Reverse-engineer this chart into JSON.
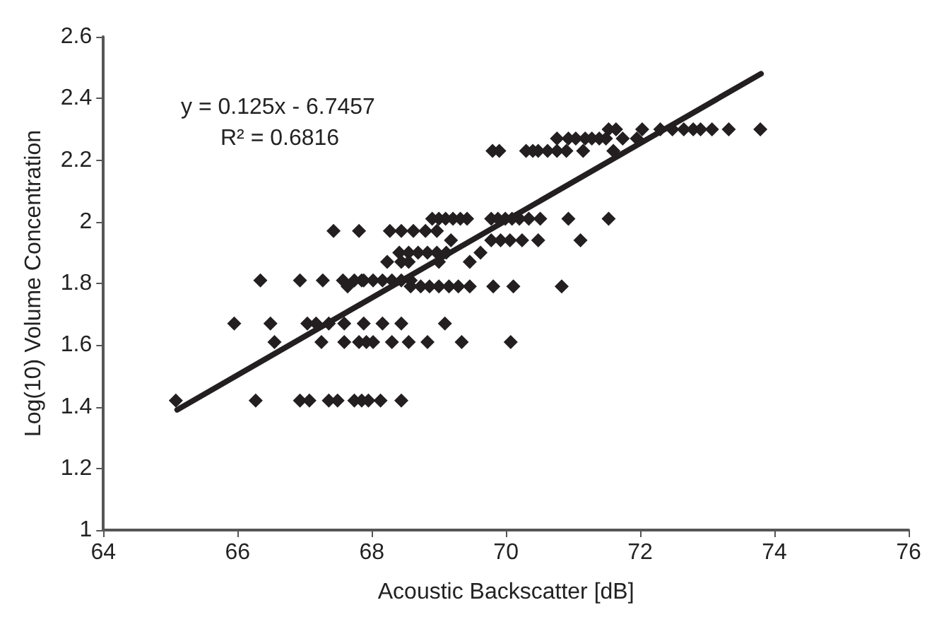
{
  "chart_data": {
    "type": "scatter",
    "xlabel": "Acoustic Backscatter [dB]",
    "ylabel": "Log(10) Volume Concentration",
    "xlim": [
      64,
      76
    ],
    "xticks": [
      64,
      66,
      68,
      70,
      72,
      74,
      76
    ],
    "ylim": [
      1,
      2.6
    ],
    "yticks": [
      1,
      1.2,
      1.4,
      1.6,
      1.8,
      2,
      2.2,
      2.4,
      2.6
    ],
    "grid": false,
    "annotations": [
      "y = 0.125x - 6.7457",
      "R² = 0.6816"
    ],
    "series": [
      {
        "color": "#231f20",
        "marker": "diamond",
        "x": [
          65.08,
          66.27,
          66.93,
          67.07,
          67.36,
          67.49,
          67.74,
          67.85,
          67.95,
          68.13,
          68.44,
          66.55,
          67.25,
          67.59,
          67.81,
          67.92,
          68.02,
          68.3,
          68.55,
          68.83,
          69.34,
          70.07,
          65.95,
          66.49,
          67.04,
          67.17,
          67.36,
          67.59,
          67.88,
          68.16,
          68.44,
          69.09,
          66.34,
          66.93,
          67.27,
          67.57,
          67.85,
          67.64,
          67.43,
          67.81,
          68.9,
          69.0,
          69.1,
          69.21,
          69.32,
          69.42,
          69.78,
          69.88,
          69.99,
          70.09,
          70.2,
          70.34,
          70.51,
          70.93,
          71.53,
          68.27,
          68.44,
          68.62,
          68.8,
          68.97,
          69.78,
          69.92,
          70.06,
          70.24,
          70.48,
          71.11,
          69.18,
          68.41,
          68.55,
          68.69,
          68.83,
          68.97,
          69.11,
          69.62,
          68.23,
          68.44,
          68.55,
          69.0,
          69.46,
          67.74,
          67.88,
          68.02,
          68.16,
          68.3,
          68.44,
          68.58,
          68.58,
          68.73,
          68.86,
          69.0,
          69.15,
          69.29,
          69.46,
          69.81,
          70.11,
          70.83,
          71.53,
          71.64,
          72.03,
          72.3,
          72.48,
          72.65,
          72.79,
          72.9,
          73.07,
          73.32,
          73.79,
          70.76,
          70.93,
          71.04,
          71.18,
          71.28,
          71.39,
          71.49,
          71.74,
          71.95,
          69.8,
          69.9,
          70.3,
          70.4,
          70.48,
          70.62,
          70.76,
          70.9,
          71.15,
          71.6
        ],
        "values": [
          1.42,
          1.42,
          1.42,
          1.42,
          1.42,
          1.42,
          1.42,
          1.42,
          1.42,
          1.42,
          1.42,
          1.61,
          1.61,
          1.61,
          1.61,
          1.61,
          1.61,
          1.61,
          1.61,
          1.61,
          1.61,
          1.61,
          1.67,
          1.67,
          1.67,
          1.67,
          1.67,
          1.67,
          1.67,
          1.67,
          1.67,
          1.67,
          1.81,
          1.81,
          1.81,
          1.81,
          1.81,
          1.79,
          1.97,
          1.97,
          2.01,
          2.01,
          2.01,
          2.01,
          2.01,
          2.01,
          2.01,
          2.01,
          2.01,
          2.01,
          2.01,
          2.01,
          2.01,
          2.01,
          2.01,
          1.97,
          1.97,
          1.97,
          1.97,
          1.97,
          1.94,
          1.94,
          1.94,
          1.94,
          1.94,
          1.94,
          1.94,
          1.9,
          1.9,
          1.9,
          1.9,
          1.9,
          1.9,
          1.9,
          1.87,
          1.87,
          1.87,
          1.87,
          1.87,
          1.81,
          1.81,
          1.81,
          1.81,
          1.81,
          1.81,
          1.81,
          1.79,
          1.79,
          1.79,
          1.79,
          1.79,
          1.79,
          1.79,
          1.79,
          1.79,
          1.79,
          2.3,
          2.3,
          2.3,
          2.3,
          2.3,
          2.3,
          2.3,
          2.3,
          2.3,
          2.3,
          2.3,
          2.27,
          2.27,
          2.27,
          2.27,
          2.27,
          2.27,
          2.27,
          2.27,
          2.27,
          2.23,
          2.23,
          2.23,
          2.23,
          2.23,
          2.23,
          2.23,
          2.23,
          2.23,
          2.23
        ]
      },
      {
        "type": "line",
        "color": "#231f20",
        "marker": "none",
        "line_style": "solid",
        "x": [
          65.1,
          73.8
        ],
        "values": [
          1.39,
          2.48
        ]
      }
    ]
  }
}
